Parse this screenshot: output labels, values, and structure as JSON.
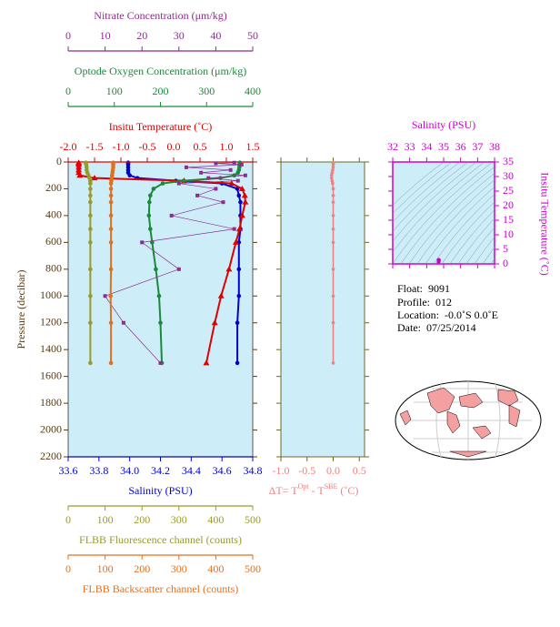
{
  "chart_data": [
    {
      "type": "profile",
      "y_label": "Pressure (decibar)",
      "ylim": [
        0,
        2200
      ],
      "yticks": [
        0,
        200,
        400,
        600,
        800,
        1000,
        1200,
        1400,
        1600,
        1800,
        2000,
        2200
      ],
      "pressure": [
        5,
        10,
        20,
        40,
        60,
        80,
        100,
        120,
        140,
        160,
        200,
        250,
        300,
        400,
        500,
        600,
        800,
        1000,
        1200,
        1500
      ],
      "series": [
        {
          "name": "Salinity (PSU)",
          "side": "bottom",
          "color": "#0000cc",
          "marker": "circle",
          "xlim": [
            33.6,
            34.8
          ],
          "xticks": [
            33.6,
            33.8,
            {
              "value": 34,
              "label": "34.0"
            },
            34.2,
            34.4,
            34.6,
            34.8
          ],
          "values": [
            33.99,
            33.99,
            33.99,
            33.99,
            33.99,
            33.99,
            34.0,
            34.05,
            34.3,
            34.6,
            34.7,
            34.71,
            34.72,
            34.72,
            34.72,
            34.71,
            34.71,
            34.71,
            34.7,
            34.7
          ]
        },
        {
          "name": "Insitu Temperature (˚C)",
          "side": "top",
          "color": "#e00000",
          "marker": "triangle",
          "xlim": [
            -2.0,
            1.5
          ],
          "xticks": [
            {
              "value": -2,
              "label": "-2.0"
            },
            -1.5,
            {
              "value": -1,
              "label": "-1.0"
            },
            -0.5,
            {
              "value": 0,
              "label": "0.0"
            },
            0.5,
            {
              "value": 1,
              "label": "1.0"
            },
            1.5
          ],
          "values": [
            -1.8,
            -1.8,
            -1.8,
            -1.8,
            -1.8,
            -1.8,
            -1.78,
            -1.5,
            0.2,
            1.1,
            1.3,
            1.35,
            1.36,
            1.3,
            1.25,
            1.18,
            1.05,
            0.9,
            0.78,
            0.62
          ]
        },
        {
          "name": "Optode Oxygen Concentration (μm/kg)",
          "side": "top",
          "color": "#1a8a3a",
          "marker": "circle",
          "xlim": [
            0,
            400
          ],
          "xticks": [
            0,
            100,
            200,
            300,
            400
          ],
          "values": [
            372,
            372,
            371,
            371,
            370,
            368,
            360,
            330,
            250,
            205,
            185,
            178,
            176,
            175,
            178,
            182,
            190,
            197,
            200,
            203
          ]
        },
        {
          "name": "Nitrate Concentration (μm/kg)",
          "side": "top",
          "color": "#8e2c8e",
          "marker": "square",
          "thin": true,
          "xlim": [
            0,
            50
          ],
          "xticks": [
            0,
            10,
            20,
            30,
            40,
            50
          ],
          "values": [
            45,
            40,
            47,
            32,
            44,
            36,
            48,
            38,
            46,
            30,
            40,
            35,
            42,
            28,
            45,
            20,
            30,
            10,
            15,
            25
          ]
        },
        {
          "name": "FLBB Fluorescence channel (counts)",
          "side": "bottom",
          "color": "#9a9a2a",
          "marker": "circle",
          "xlim": [
            0,
            500
          ],
          "xticks": [
            0,
            100,
            200,
            300,
            400,
            500
          ],
          "values": [
            48,
            48,
            49,
            50,
            50,
            52,
            55,
            58,
            60,
            60,
            60,
            60,
            60,
            60,
            60,
            60,
            60,
            60,
            60,
            60
          ]
        },
        {
          "name": "FLBB Backscatter channel (counts)",
          "side": "bottom",
          "color": "#e07020",
          "marker": "circle",
          "xlim": [
            0,
            500
          ],
          "xticks": [
            0,
            100,
            200,
            300,
            400,
            500
          ],
          "values": [
            122,
            122,
            122,
            122,
            121,
            120,
            119,
            118,
            117,
            116,
            116,
            116,
            116,
            116,
            116,
            116,
            116,
            115,
            116,
            116
          ]
        }
      ]
    },
    {
      "type": "delta",
      "x_label_parts": [
        "ΔT= T",
        "Opt",
        " - T",
        "SBE",
        " (˚C)"
      ],
      "color": "#f08080",
      "xlim": [
        -1.0,
        0.6
      ],
      "xticks": [
        {
          "value": -1,
          "label": "-1.0"
        },
        -0.5,
        {
          "value": 0,
          "label": "0.0"
        },
        0.5
      ],
      "ylim": [
        0,
        2200
      ],
      "yticks": [
        0,
        200,
        400,
        600,
        800,
        1000,
        1200,
        1400,
        1600,
        1800,
        2000,
        2200
      ],
      "pressure": [
        5,
        10,
        20,
        40,
        60,
        80,
        100,
        120,
        140,
        160,
        200,
        250,
        300,
        400,
        500,
        600,
        800,
        1000,
        1200,
        1500
      ],
      "values": [
        0.0,
        0.0,
        0.0,
        0.0,
        -0.01,
        -0.02,
        -0.03,
        -0.03,
        -0.02,
        -0.01,
        0.0,
        0.0,
        0.0,
        0.0,
        0.0,
        0.0,
        0.0,
        0.0,
        0.0,
        0.0
      ]
    },
    {
      "type": "ts",
      "x_label": "Salinity (PSU)",
      "y_label": "Insitu Temperature (˚C)",
      "color": "#cc00cc",
      "xlim": [
        32,
        38
      ],
      "xticks": [
        32,
        33,
        34,
        35,
        36,
        37,
        38
      ],
      "ylim": [
        0,
        35
      ],
      "yticks": [
        0,
        5,
        10,
        15,
        20,
        25,
        30,
        35
      ],
      "x": [
        34.7,
        34.71,
        34.72,
        34.72,
        34.71,
        34.7
      ],
      "y": [
        1.3,
        1.35,
        1.36,
        1.25,
        0.9,
        0.62
      ]
    }
  ],
  "info": {
    "float_label": "Float:",
    "float": "9091",
    "profile_label": "Profile:",
    "profile": "012",
    "location_label": "Location:",
    "location": "-0.0˚S  0.0˚E",
    "date_label": "Date:",
    "date": "07/25/2014"
  }
}
